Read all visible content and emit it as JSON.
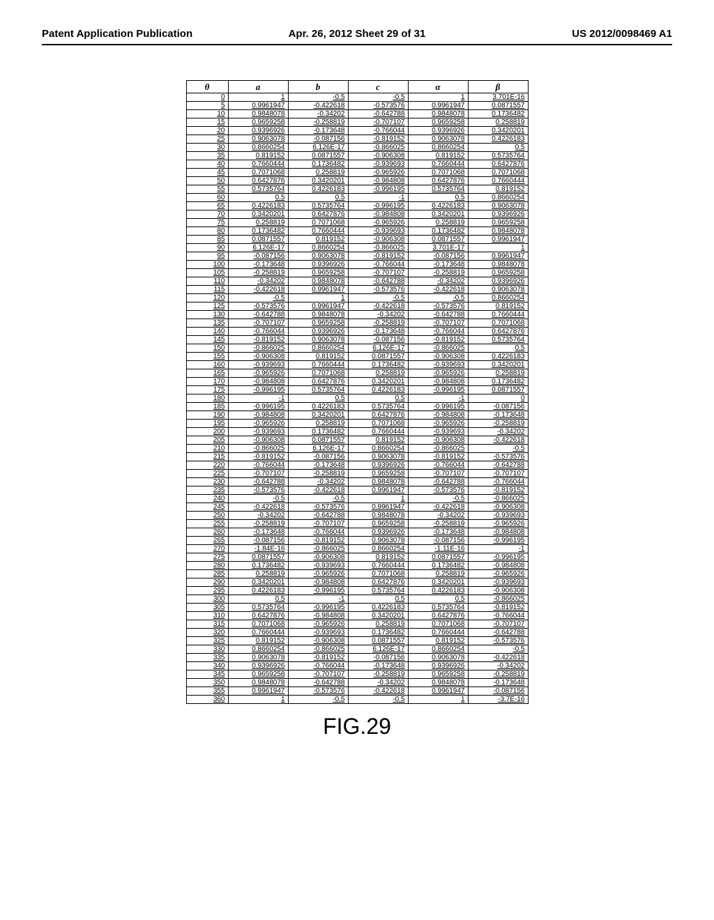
{
  "header": {
    "left": "Patent Application Publication",
    "mid": "Apr. 26, 2012  Sheet 29 of 31",
    "right": "US 2012/0098469 A1"
  },
  "figure_label": "FIG.29",
  "table": {
    "columns": [
      "θ",
      "a",
      "b",
      "c",
      "α",
      "β"
    ],
    "col_classes": [
      "col-theta",
      "col-v",
      "col-v",
      "col-v",
      "col-v",
      "col-v"
    ],
    "rows": [
      [
        "0",
        "1",
        "-0.5",
        "-0.5",
        "1",
        "3.701E-16"
      ],
      [
        "5",
        "0.9961947",
        "-0.422618",
        "-0.573576",
        "0.9961947",
        "0.0871557"
      ],
      [
        "10",
        "0.9848078",
        "-0.34202",
        "-0.642788",
        "0.9848078",
        "0.1736482"
      ],
      [
        "15",
        "0.9659258",
        "-0.258819",
        "-0.707107",
        "0.9659258",
        "0.258819"
      ],
      [
        "20",
        "0.9396926",
        "-0.173648",
        "-0.766044",
        "0.9396926",
        "0.3420201"
      ],
      [
        "25",
        "0.9063078",
        "-0.087156",
        "-0.819152",
        "0.9063078",
        "0.4226183"
      ],
      [
        "30",
        "0.8660254",
        "6.126E-17",
        "-0.866025",
        "0.8660254",
        "0.5"
      ],
      [
        "35",
        "0.819152",
        "0.0871557",
        "-0.906308",
        "0.819152",
        "0.5735764"
      ],
      [
        "40",
        "0.7660444",
        "0.1736482",
        "-0.939693",
        "0.7660444",
        "0.6427876"
      ],
      [
        "45",
        "0.7071068",
        "0.258819",
        "-0.965926",
        "0.7071068",
        "0.7071068"
      ],
      [
        "50",
        "0.6427876",
        "0.3420201",
        "-0.984808",
        "0.6427876",
        "0.7660444"
      ],
      [
        "55",
        "0.5735764",
        "0.4226183",
        "-0.996195",
        "0.5735764",
        "0.819152"
      ],
      [
        "60",
        "0.5",
        "0.5",
        "-1",
        "0.5",
        "0.8660254"
      ],
      [
        "65",
        "0.4226183",
        "0.5735764",
        "-0.996195",
        "0.4226183",
        "0.9063078"
      ],
      [
        "70",
        "0.3420201",
        "0.6427876",
        "-0.984808",
        "0.3420201",
        "0.9396926"
      ],
      [
        "75",
        "0.258819",
        "0.7071068",
        "-0.965926",
        "0.258819",
        "0.9659258"
      ],
      [
        "80",
        "0.1736482",
        "0.7660444",
        "-0.939693",
        "0.1736482",
        "0.9848078"
      ],
      [
        "85",
        "0.0871557",
        "0.819152",
        "-0.906308",
        "0.0871557",
        "0.9961947"
      ],
      [
        "90",
        "6.126E-17",
        "0.8660254",
        "-0.866025",
        "3.701E-17",
        "1"
      ],
      [
        "95",
        "-0.087156",
        "0.9063078",
        "-0.819152",
        "-0.087156",
        "0.9961947"
      ],
      [
        "100",
        "-0.173648",
        "0.9396926",
        "-0.766044",
        "-0.173648",
        "0.9848078"
      ],
      [
        "105",
        "-0.258819",
        "0.9659258",
        "-0.707107",
        "-0.258819",
        "0.9659258"
      ],
      [
        "110",
        "-0.34202",
        "0.9848078",
        "-0.642788",
        "-0.34202",
        "0.9396926"
      ],
      [
        "115",
        "-0.422618",
        "0.9961947",
        "-0.573576",
        "-0.422618",
        "0.9063078"
      ],
      [
        "120",
        "-0.5",
        "1",
        "-0.5",
        "-0.5",
        "0.8660254"
      ],
      [
        "125",
        "-0.573576",
        "0.9961947",
        "-0.422618",
        "-0.573576",
        "0.819152"
      ],
      [
        "130",
        "-0.642788",
        "0.9848078",
        "-0.34202",
        "-0.642788",
        "0.7660444"
      ],
      [
        "135",
        "-0.707107",
        "0.9659258",
        "-0.258819",
        "-0.707107",
        "0.7071068"
      ],
      [
        "140",
        "-0.766044",
        "0.9396926",
        "-0.173648",
        "-0.766044",
        "0.6427876"
      ],
      [
        "145",
        "-0.819152",
        "0.9063078",
        "-0.087156",
        "-0.819152",
        "0.5735764"
      ],
      [
        "150",
        "-0.866025",
        "0.8660254",
        "6.126E-17",
        "-0.866025",
        "0.5"
      ],
      [
        "155",
        "-0.906308",
        "0.819152",
        "0.0871557",
        "-0.906308",
        "0.4226183"
      ],
      [
        "160",
        "-0.939693",
        "0.7660444",
        "0.1736482",
        "-0.939693",
        "0.3420201"
      ],
      [
        "165",
        "-0.965926",
        "0.7071068",
        "0.258819",
        "-0.965926",
        "0.258819"
      ],
      [
        "170",
        "-0.984808",
        "0.6427876",
        "0.3420201",
        "-0.984808",
        "0.1736482"
      ],
      [
        "175",
        "-0.996195",
        "0.5735764",
        "0.4226183",
        "-0.996195",
        "0.0871557"
      ],
      [
        "180",
        "-1",
        "0.5",
        "0.5",
        "-1",
        "0"
      ],
      [
        "185",
        "-0.996195",
        "0.4226183",
        "0.5735764",
        "-0.996195",
        "-0.087156"
      ],
      [
        "190",
        "-0.984808",
        "0.3420201",
        "0.6427876",
        "-0.984808",
        "-0.173648"
      ],
      [
        "195",
        "-0.965926",
        "0.258819",
        "0.7071068",
        "-0.965926",
        "-0.258819"
      ],
      [
        "200",
        "-0.939693",
        "0.1736482",
        "0.7660444",
        "-0.939693",
        "-0.34202"
      ],
      [
        "205",
        "-0.906308",
        "0.0871557",
        "0.819152",
        "-0.906308",
        "-0.422618"
      ],
      [
        "210",
        "-0.866025",
        "6.126E-17",
        "0.8660254",
        "-0.866025",
        "-0.5"
      ],
      [
        "215",
        "-0.819152",
        "-0.087156",
        "0.9063078",
        "-0.819152",
        "-0.573576"
      ],
      [
        "220",
        "-0.766044",
        "-0.173648",
        "0.9396926",
        "-0.766044",
        "-0.642788"
      ],
      [
        "225",
        "-0.707107",
        "-0.258819",
        "0.9659258",
        "-0.707107",
        "-0.707107"
      ],
      [
        "230",
        "-0.642788",
        "-0.34202",
        "0.9848078",
        "-0.642788",
        "-0.766044"
      ],
      [
        "235",
        "-0.573576",
        "-0.422618",
        "0.9961947",
        "-0.573576",
        "-0.819152"
      ],
      [
        "240",
        "-0.5",
        "-0.5",
        "1",
        "-0.5",
        "-0.866025"
      ],
      [
        "245",
        "-0.422618",
        "-0.573576",
        "0.9961947",
        "-0.422618",
        "-0.906308"
      ],
      [
        "250",
        "-0.34202",
        "-0.642788",
        "0.9848078",
        "-0.34202",
        "-0.939693"
      ],
      [
        "255",
        "-0.258819",
        "-0.707107",
        "0.9659258",
        "-0.258819",
        "-0.965926"
      ],
      [
        "260",
        "-0.173648",
        "-0.766044",
        "0.9396926",
        "-0.173648",
        "-0.984808"
      ],
      [
        "265",
        "-0.087156",
        "-0.819152",
        "0.9063078",
        "-0.087156",
        "-0.996195"
      ],
      [
        "270",
        "-1.84E-16",
        "-0.866025",
        "0.8660254",
        "-1.11E-16",
        "-1"
      ],
      [
        "275",
        "0.0871557",
        "-0.906308",
        "0.819152",
        "0.0871557",
        "-0.996195"
      ],
      [
        "280",
        "0.1736482",
        "-0.939693",
        "0.7660444",
        "0.1736482",
        "-0.984808"
      ],
      [
        "285",
        "0.258819",
        "-0.965926",
        "0.7071068",
        "0.258819",
        "-0.965926"
      ],
      [
        "290",
        "0.3420201",
        "-0.984808",
        "0.6427876",
        "0.3420201",
        "-0.939693"
      ],
      [
        "295",
        "0.4226183",
        "-0.996195",
        "0.5735764",
        "0.4226183",
        "-0.906308"
      ],
      [
        "300",
        "0.5",
        "-1",
        "0.5",
        "0.5",
        "-0.866025"
      ],
      [
        "305",
        "0.5735764",
        "-0.996195",
        "0.4226183",
        "0.5735764",
        "-0.819152"
      ],
      [
        "310",
        "0.6427876",
        "-0.984808",
        "0.3420201",
        "0.6427876",
        "-0.766044"
      ],
      [
        "315",
        "0.7071068",
        "-0.965926",
        "0.258819",
        "0.7071068",
        "-0.707107"
      ],
      [
        "320",
        "0.7660444",
        "-0.939693",
        "0.1736482",
        "0.7660444",
        "-0.642788"
      ],
      [
        "325",
        "0.819152",
        "-0.906308",
        "0.0871557",
        "0.819152",
        "-0.573576"
      ],
      [
        "330",
        "0.8660254",
        "-0.866025",
        "6.126E-17",
        "0.8660254",
        "-0.5"
      ],
      [
        "335",
        "0.9063078",
        "-0.819152",
        "-0.087156",
        "0.9063078",
        "-0.422618"
      ],
      [
        "340",
        "0.9396926",
        "-0.766044",
        "-0.173648",
        "0.9396926",
        "-0.34202"
      ],
      [
        "345",
        "0.9659258",
        "-0.707107",
        "-0.258819",
        "0.9659258",
        "-0.258819"
      ],
      [
        "350",
        "0.9848078",
        "-0.642788",
        "-0.34202",
        "0.9848078",
        "-0.173648"
      ],
      [
        "355",
        "0.9961947",
        "-0.573576",
        "-0.422618",
        "0.9961947",
        "-0.087156"
      ],
      [
        "360",
        "1",
        "-0.5",
        "-0.5",
        "1",
        "-3.7E-16"
      ]
    ]
  }
}
